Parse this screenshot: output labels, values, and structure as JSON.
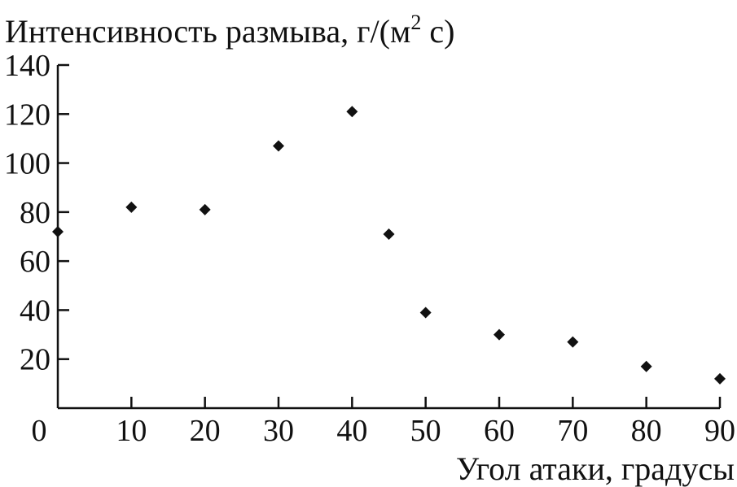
{
  "chart_data": {
    "type": "scatter",
    "title": "",
    "ylabel_main": "Интенсивность размыва, г/(м",
    "ylabel_sup": "2",
    "ylabel_tail": " с)",
    "xlabel": "Угол атаки, градусы",
    "xlim": [
      0,
      90
    ],
    "ylim": [
      0,
      140
    ],
    "x_ticks": [
      0,
      10,
      20,
      30,
      40,
      50,
      60,
      70,
      80,
      90
    ],
    "y_ticks": [
      20,
      40,
      60,
      80,
      100,
      120,
      140
    ],
    "marker": "diamond",
    "marker_color": "#111111",
    "grid": false,
    "series": [
      {
        "x": [
          0,
          10,
          20,
          30,
          40,
          45,
          50,
          60,
          70,
          80,
          90
        ],
        "y": [
          72,
          82,
          81,
          107,
          121,
          71,
          39,
          30,
          27,
          17,
          12
        ]
      }
    ]
  }
}
